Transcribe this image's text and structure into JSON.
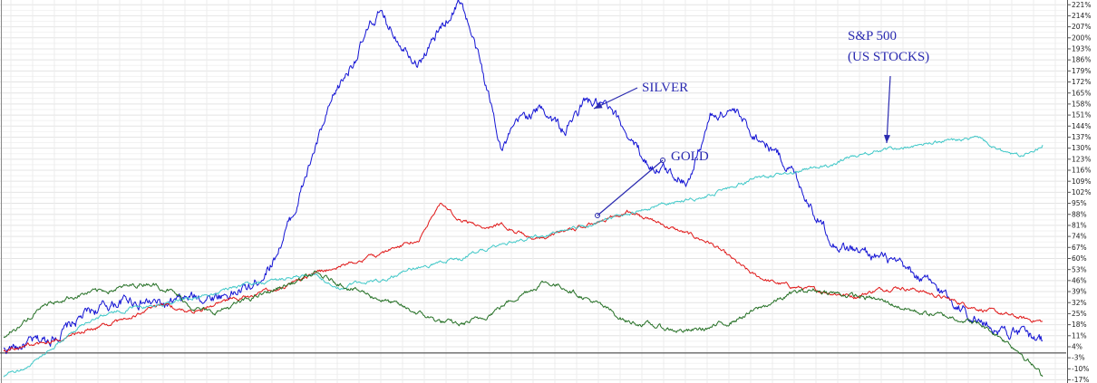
{
  "chart_data": {
    "type": "line",
    "title": "",
    "xlabel": "",
    "ylabel": "",
    "ylim": [
      -17,
      221
    ],
    "y_ticks": [
      "221%",
      "214%",
      "207%",
      "200%",
      "193%",
      "186%",
      "179%",
      "172%",
      "165%",
      "158%",
      "151%",
      "144%",
      "137%",
      "130%",
      "123%",
      "116%",
      "109%",
      "102%",
      "95%",
      "88%",
      "81%",
      "74%",
      "67%",
      "60%",
      "53%",
      "46%",
      "39%",
      "32%",
      "25%",
      "18%",
      "11%",
      "4%",
      "-3%",
      "-10%",
      "-17%"
    ],
    "y_tick_values": [
      221,
      214,
      207,
      200,
      193,
      186,
      179,
      172,
      165,
      158,
      151,
      144,
      137,
      130,
      123,
      116,
      109,
      102,
      95,
      88,
      81,
      74,
      67,
      60,
      53,
      46,
      39,
      32,
      25,
      18,
      11,
      4,
      -3,
      -10,
      -17
    ],
    "grid": true,
    "baseline": 0,
    "x": [
      0,
      2,
      4,
      6,
      8,
      10,
      12,
      14,
      16,
      18,
      20,
      22,
      24,
      26,
      28,
      30,
      32,
      34,
      36,
      38,
      40,
      42,
      44,
      46,
      48,
      50,
      52,
      54,
      56,
      58,
      60,
      62,
      64,
      66,
      68,
      70,
      72,
      74,
      76,
      78,
      80,
      82,
      84,
      86,
      88,
      90,
      92,
      94,
      96,
      98,
      100
    ],
    "series": [
      {
        "key": "silver",
        "color": "#1414d4",
        "values": [
          2,
          5,
          8,
          15,
          25,
          30,
          34,
          32,
          30,
          35,
          36,
          38,
          42,
          60,
          90,
          130,
          165,
          190,
          215,
          200,
          185,
          205,
          225,
          180,
          130,
          150,
          155,
          140,
          160,
          155,
          140,
          120,
          115,
          110,
          150,
          155,
          140,
          130,
          115,
          90,
          70,
          65,
          62,
          55,
          48,
          40,
          30,
          20,
          15,
          12,
          8
        ]
      },
      {
        "key": "gold",
        "color": "#e01818",
        "values": [
          2,
          5,
          6,
          10,
          15,
          18,
          22,
          28,
          30,
          26,
          30,
          34,
          36,
          40,
          45,
          50,
          55,
          58,
          62,
          68,
          72,
          95,
          85,
          80,
          82,
          75,
          72,
          78,
          80,
          85,
          90,
          85,
          80,
          75,
          70,
          60,
          50,
          45,
          42,
          40,
          38,
          36,
          40,
          42,
          40,
          36,
          32,
          28,
          25,
          22,
          20
        ]
      },
      {
        "key": "sp500",
        "color": "#40c8c8",
        "values": [
          -15,
          -10,
          0,
          10,
          20,
          25,
          28,
          30,
          32,
          35,
          38,
          42,
          44,
          46,
          48,
          50,
          40,
          44,
          46,
          50,
          55,
          58,
          60,
          65,
          70,
          72,
          75,
          78,
          80,
          85,
          88,
          92,
          95,
          98,
          100,
          105,
          110,
          112,
          115,
          118,
          120,
          125,
          128,
          130,
          132,
          134,
          135,
          136,
          128,
          125,
          132
        ]
      },
      {
        "key": "stocks2",
        "color": "#257025",
        "values": [
          10,
          20,
          30,
          35,
          38,
          40,
          42,
          45,
          40,
          30,
          25,
          30,
          35,
          40,
          45,
          50,
          45,
          40,
          35,
          30,
          25,
          20,
          18,
          22,
          30,
          38,
          45,
          42,
          35,
          28,
          20,
          18,
          15,
          14,
          16,
          20,
          26,
          32,
          38,
          40,
          38,
          36,
          34,
          30,
          26,
          24,
          22,
          18,
          10,
          0,
          -15
        ]
      }
    ],
    "annotations": [
      {
        "text": "S&P 500",
        "target_series": "sp500"
      },
      {
        "text": "(US STOCKS)",
        "target_series": "sp500"
      },
      {
        "text": "SILVER",
        "target_series": "silver"
      },
      {
        "text": "GOLD",
        "target_series": "gold"
      }
    ]
  }
}
